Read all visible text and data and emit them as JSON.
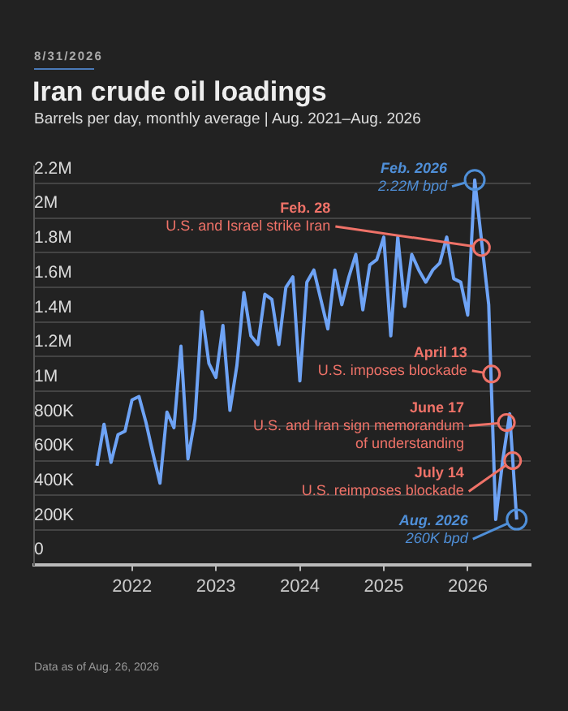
{
  "chart_data": {
    "type": "line",
    "title": "Iran crude oil loadings",
    "subtitle": "Barrels per day, monthly average | Aug. 2021–Aug. 2026",
    "x": [
      "2021-08",
      "2021-09",
      "2021-10",
      "2021-11",
      "2021-12",
      "2022-01",
      "2022-02",
      "2022-03",
      "2022-04",
      "2022-05",
      "2022-06",
      "2022-07",
      "2022-08",
      "2022-09",
      "2022-10",
      "2022-11",
      "2022-12",
      "2023-01",
      "2023-02",
      "2023-03",
      "2023-04",
      "2023-05",
      "2023-06",
      "2023-07",
      "2023-08",
      "2023-09",
      "2023-10",
      "2023-11",
      "2023-12",
      "2024-01",
      "2024-02",
      "2024-03",
      "2024-04",
      "2024-05",
      "2024-06",
      "2024-07",
      "2024-08",
      "2024-09",
      "2024-10",
      "2024-11",
      "2024-12",
      "2025-01",
      "2025-02",
      "2025-03",
      "2025-04",
      "2025-05",
      "2025-06",
      "2025-07",
      "2025-08",
      "2025-09",
      "2025-10",
      "2025-11",
      "2025-12",
      "2026-01",
      "2026-02",
      "2026-03",
      "2026-04",
      "2026-05",
      "2026-06",
      "2026-07",
      "2026-08"
    ],
    "series": [
      {
        "color": "#6ea3f5",
        "values": [
          570000,
          810000,
          590000,
          750000,
          770000,
          950000,
          970000,
          820000,
          640000,
          470000,
          880000,
          790000,
          1260000,
          610000,
          840000,
          1460000,
          1160000,
          1080000,
          1380000,
          890000,
          1150000,
          1570000,
          1320000,
          1270000,
          1560000,
          1530000,
          1270000,
          1600000,
          1660000,
          1060000,
          1630000,
          1700000,
          1530000,
          1360000,
          1700000,
          1500000,
          1660000,
          1790000,
          1470000,
          1730000,
          1760000,
          1890000,
          1320000,
          1890000,
          1490000,
          1790000,
          1700000,
          1630000,
          1700000,
          1740000,
          1890000,
          1650000,
          1630000,
          1440000,
          2220000,
          1860000,
          1500000,
          260000,
          600000,
          870000,
          260000
        ]
      }
    ],
    "xlim": [
      "2020-11",
      "2026-10"
    ],
    "xticks": [
      "2022",
      "2023",
      "2024",
      "2025",
      "2026"
    ],
    "ylim": [
      0,
      2300000
    ],
    "yticks": [
      0,
      {
        "value": 200000,
        "label": "200K"
      },
      {
        "value": 400000,
        "label": "400K"
      },
      {
        "value": 600000,
        "label": "600K"
      },
      {
        "value": 800000,
        "label": "800K"
      },
      {
        "value": 1000000,
        "label": "1M"
      },
      {
        "value": 1200000,
        "label": "1.2M"
      },
      {
        "value": 1400000,
        "label": "1.4M"
      },
      {
        "value": 1600000,
        "label": "1.6M"
      },
      {
        "value": 1800000,
        "label": "1.8M"
      },
      {
        "value": 2000000,
        "label": "2M"
      },
      {
        "value": 2200000,
        "label": "2.2M"
      }
    ],
    "grid": "y",
    "legend": false,
    "marker": "none",
    "line_style": "solid",
    "annotations": [
      "8/31/2026",
      "Data as of Aug. 26, 2026",
      {
        "text": "Feb. 2026\n2.22M bpd",
        "x": "2026-02",
        "y": 2220000
      },
      {
        "text": "Feb. 28\nU.S. and Israel strike Iran",
        "x": "2026-02-28",
        "y": 1830000
      },
      {
        "text": "April 13\nU.S. imposes blockade",
        "x": "2026-04-13",
        "y": 1100000
      },
      {
        "text": "June 17\nU.S. and Iran sign memorandum\nof understanding",
        "x": "2026-06-17",
        "y": 820000
      },
      {
        "text": "July 14\nU.S. reimposes blockade",
        "x": "2026-07-14",
        "y": 600000
      },
      {
        "text": "Aug. 2026\n260K bpd",
        "x": "2026-08",
        "y": 260000
      }
    ]
  }
}
